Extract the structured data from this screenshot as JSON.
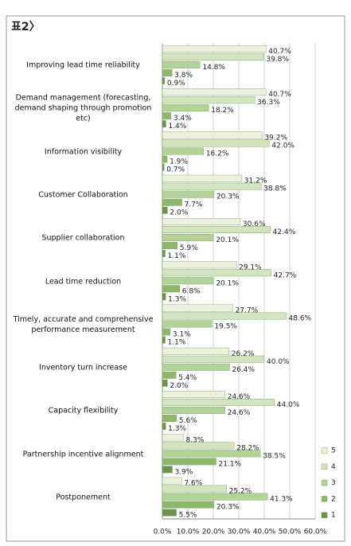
{
  "chart_data": {
    "type": "hbar",
    "title": "표2〉",
    "categories": [
      "Improving lead time reliability",
      "Demand management (forecasting, demand shaping through promotion etc)",
      "Information visibility",
      "Customer Collaboration",
      "Supplier collaboration",
      "Lead time reduction",
      "Timely, accurate and comprehensive performance measurement",
      "Inventory turn increase",
      "Capacity flexibility",
      "Partnership incentive alignment",
      "Postponement"
    ],
    "series": [
      {
        "name": "5",
        "color": "#eaf2de",
        "values": [
          40.7,
          40.7,
          39.2,
          31.2,
          30.6,
          29.1,
          27.7,
          26.2,
          24.6,
          8.3,
          7.6
        ],
        "value_labels": [
          "40.7%",
          "40.7%",
          "39.2%",
          "31.2%",
          "30.6%",
          "29.1%",
          "27.7%",
          "26.2%",
          "24.6%",
          "8.3%",
          "7.6%"
        ]
      },
      {
        "name": "4",
        "color": "#d3e5bf",
        "values": [
          39.8,
          36.3,
          42.0,
          38.8,
          42.4,
          42.7,
          48.6,
          40.0,
          44.0,
          28.2,
          25.2
        ],
        "value_labels": [
          "39.8%",
          "36.3%",
          "42.0%",
          "38.8%",
          "42.4%",
          "42.7%",
          "48.6%",
          "40.0%",
          "44.0%",
          "28.2%",
          "25.2%"
        ]
      },
      {
        "name": "3",
        "color": "#b3d297",
        "values": [
          14.8,
          18.2,
          16.2,
          20.3,
          20.1,
          20.1,
          19.5,
          26.4,
          24.6,
          38.5,
          41.3
        ],
        "value_labels": [
          "14.8%",
          "18.2%",
          "16.2%",
          "20.3%",
          "20.1%",
          "20.1%",
          "19.5%",
          "26.4%",
          "24.6%",
          "38.5%",
          "41.3%"
        ]
      },
      {
        "name": "2",
        "color": "#8db86c",
        "values": [
          3.8,
          3.4,
          1.9,
          7.7,
          5.9,
          6.8,
          3.1,
          5.4,
          5.6,
          21.1,
          20.3
        ],
        "value_labels": [
          "3.8%",
          "3.4%",
          "1.9%",
          "7.7%",
          "5.9%",
          "6.8%",
          "3.1%",
          "5.4%",
          "5.6%",
          "21.1%",
          "20.3%"
        ]
      },
      {
        "name": "1",
        "color": "#6c9450",
        "values": [
          0.9,
          1.4,
          0.7,
          2.0,
          1.1,
          1.3,
          1.1,
          2.0,
          1.3,
          3.9,
          5.5
        ],
        "value_labels": [
          "0.9%",
          "1.4%",
          "0.7%",
          "2.0%",
          "1.1%",
          "1.3%",
          "1.1%",
          "2.0%",
          "1.3%",
          "3.9%",
          "5.5%"
        ]
      }
    ],
    "xlim": [
      0,
      60
    ],
    "xticks": [
      {
        "value": 0,
        "label": "0.0%"
      },
      {
        "value": 10,
        "label": "10.0%"
      },
      {
        "value": 20,
        "label": "20.0%"
      },
      {
        "value": 30,
        "label": "30.0%"
      },
      {
        "value": 40,
        "label": "40.0%"
      },
      {
        "value": 50,
        "label": "50.0%"
      },
      {
        "value": 60,
        "label": "60.0%"
      }
    ],
    "grid": true,
    "legend": "bottom-right"
  }
}
